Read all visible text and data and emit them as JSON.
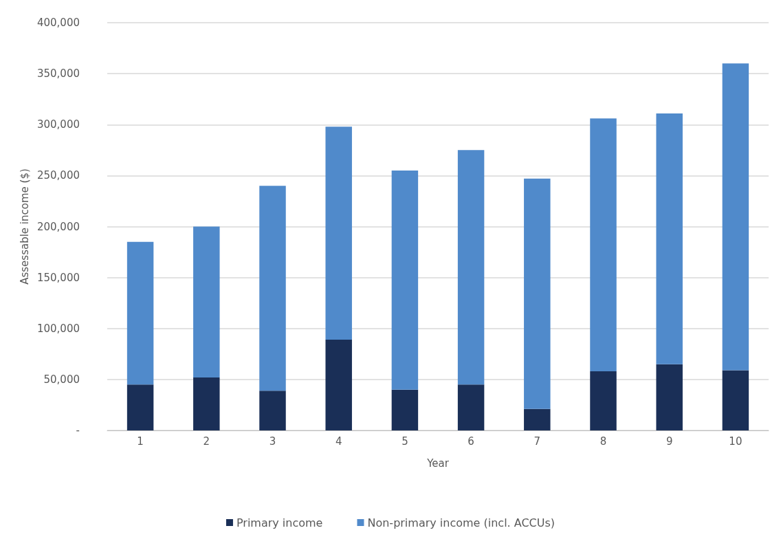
{
  "chart_data": {
    "type": "bar",
    "stacked": true,
    "xlabel": "Year",
    "ylabel": "Assessable income ($)",
    "categories": [
      "1",
      "2",
      "3",
      "4",
      "5",
      "6",
      "7",
      "8",
      "9",
      "10"
    ],
    "series": [
      {
        "name": "Primary income",
        "color": "#1a2f57",
        "values": [
          45000,
          52000,
          39000,
          89000,
          40000,
          45000,
          21000,
          58000,
          65000,
          59000
        ]
      },
      {
        "name": "Non-primary income (incl. ACCUs)",
        "color": "#508acb",
        "values": [
          140000,
          148000,
          201000,
          209000,
          215000,
          230000,
          226000,
          248000,
          246000,
          301000
        ]
      }
    ],
    "ylim": [
      0,
      400000
    ],
    "yticks": [
      {
        "value": 0,
        "label": "-"
      },
      {
        "value": 50000,
        "label": "50,000"
      },
      {
        "value": 100000,
        "label": "100,000"
      },
      {
        "value": 150000,
        "label": "150,000"
      },
      {
        "value": 200000,
        "label": "200,000"
      },
      {
        "value": 250000,
        "label": "250,000"
      },
      {
        "value": 300000,
        "label": "300,000"
      },
      {
        "value": 350000,
        "label": "350,000"
      },
      {
        "value": 400000,
        "label": "400,000"
      }
    ],
    "grid": "y",
    "legend": "bottom"
  }
}
